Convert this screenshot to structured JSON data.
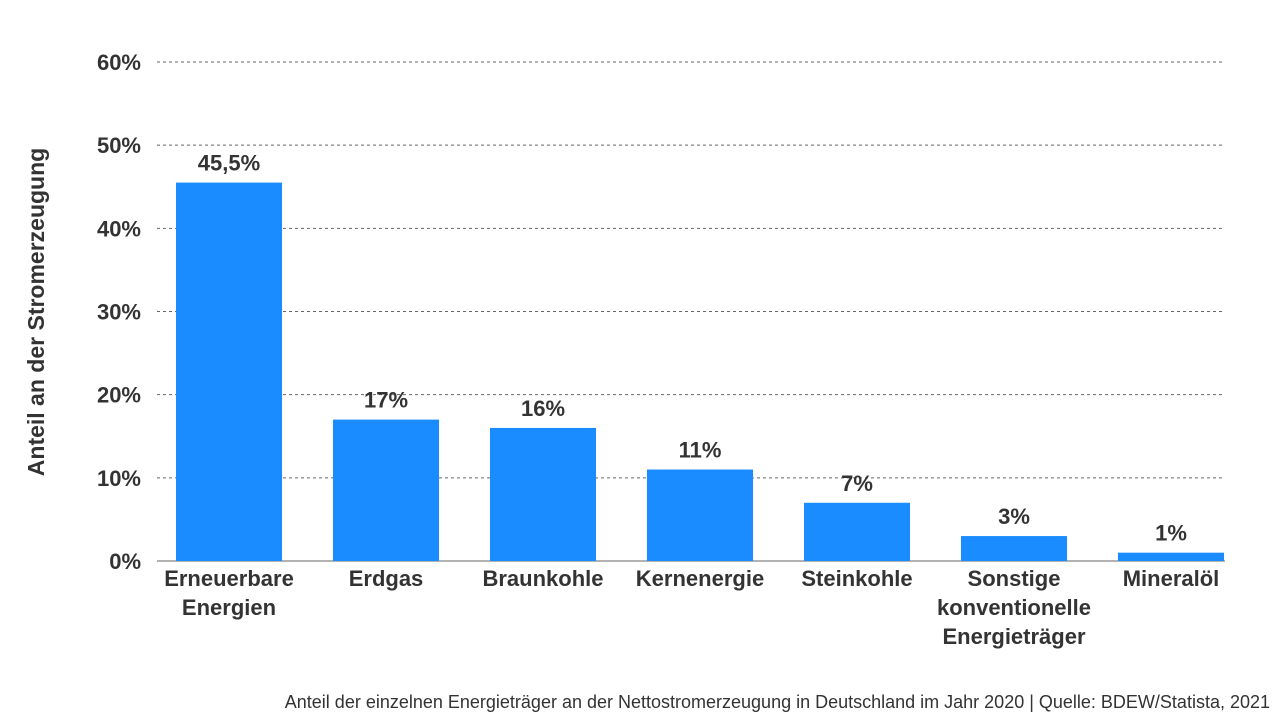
{
  "caption": "Anteil der einzelnen Energieträger an der Nettostromerzeugung in Deutschland im Jahr 2020 | Quelle: BDEW/Statista, 2021",
  "chart_data": {
    "type": "bar",
    "title": "",
    "xlabel": "",
    "ylabel": "Anteil an der Stromerzeugung",
    "ylim": [
      0,
      60
    ],
    "yticks": [
      0,
      10,
      20,
      30,
      40,
      50,
      60
    ],
    "ytick_labels": [
      "0%",
      "10%",
      "20%",
      "30%",
      "40%",
      "50%",
      "60%"
    ],
    "grid": true,
    "bar_color": "#1a8cff",
    "categories": [
      [
        "Erneuerbare",
        "Energien"
      ],
      [
        "Erdgas"
      ],
      [
        "Braunkohle"
      ],
      [
        "Kernenergie"
      ],
      [
        "Steinkohle"
      ],
      [
        "Sonstige",
        "konventionelle",
        "Energieträger"
      ],
      [
        "Mineralöl"
      ]
    ],
    "values": [
      45.5,
      17,
      16,
      11,
      7,
      3,
      1
    ],
    "value_labels": [
      "45,5%",
      "17%",
      "16%",
      "11%",
      "7%",
      "3%",
      "1%"
    ]
  }
}
